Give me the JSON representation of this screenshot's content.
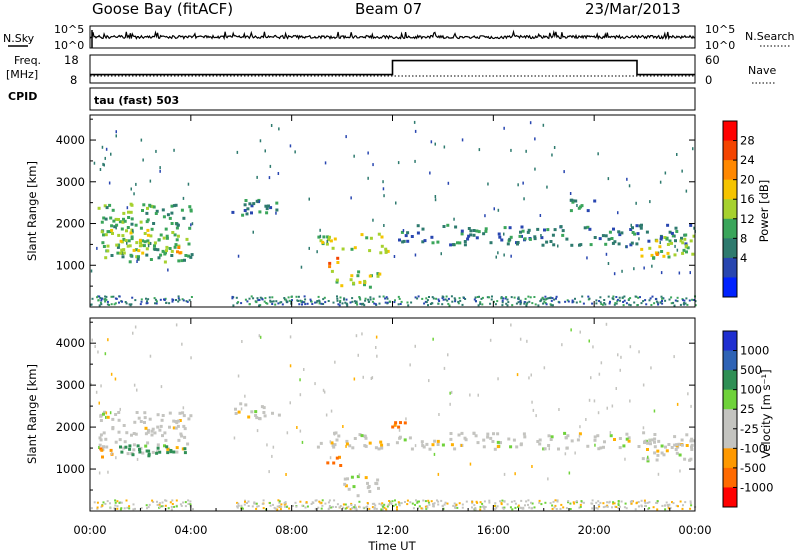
{
  "header": {
    "station": "Goose Bay (fitACF)",
    "beam": "Beam 07",
    "date": "23/Mar/2013"
  },
  "noise_panel": {
    "left_label": "N.Sky",
    "right_label": "N.Search",
    "left_ticks": [
      "10^5",
      "10^0"
    ],
    "right_ticks": [
      "10^5",
      "10^0"
    ]
  },
  "freq_panel": {
    "left_label_top": "Freq.",
    "left_label_unit": "[MHz]",
    "right_label": "Nave",
    "left_ticks": [
      "18",
      "8"
    ],
    "right_ticks": [
      "60",
      "0"
    ],
    "freq_steps": [
      {
        "from_hour": 0,
        "to_hour": 12.0,
        "value": 11
      },
      {
        "from_hour": 12.0,
        "to_hour": 21.7,
        "value": 16
      },
      {
        "from_hour": 21.7,
        "to_hour": 24,
        "value": 11
      }
    ]
  },
  "cpid_panel": {
    "label": "CPID",
    "mode": "tau (fast) 503"
  },
  "power_panel": {
    "ylabel": "Slant Range [km]",
    "colorbar_label": "Power [dB]",
    "colorbar_ticks": [
      "28",
      "24",
      "20",
      "16",
      "12",
      "8",
      "4"
    ],
    "colorbar_colors": [
      "#ff0000",
      "#f44400",
      "#ff8800",
      "#f5c400",
      "#a6d12e",
      "#3aa55a",
      "#2e7a6e",
      "#2846b0",
      "#0022ff"
    ]
  },
  "velocity_panel": {
    "ylabel": "Slant Range [km]",
    "colorbar_label": "Velocity [m s⁻¹]",
    "colorbar_ticks": [
      "1000",
      "500",
      "100",
      "25",
      "-25",
      "-100",
      "-500",
      "-1000"
    ],
    "colorbar_colors": [
      "#1f2fd0",
      "#2e63b5",
      "#2f8f55",
      "#6fd23a",
      "#c4c4c0",
      "#c4c4c0",
      "#ff9900",
      "#ff6a00",
      "#ff0000"
    ]
  },
  "chart_data": {
    "type": "heatmap",
    "xlabel": "Time UT",
    "xticks": [
      "00:00",
      "04:00",
      "08:00",
      "12:00",
      "16:00",
      "20:00",
      "00:00"
    ],
    "xlim_hours": [
      0,
      24
    ],
    "ylim": [
      0,
      4600
    ],
    "yticks": [
      1000,
      2000,
      3000,
      4000
    ],
    "data_gap_hours": [
      4.1,
      5.6
    ],
    "power_regions": [
      {
        "t0": 0.3,
        "t1": 4.0,
        "r0": 1100,
        "r1": 2500,
        "dB": 12
      },
      {
        "t0": 0.5,
        "t1": 3.5,
        "r0": 1300,
        "r1": 1900,
        "dB": 16
      },
      {
        "t0": 2.4,
        "t1": 3.6,
        "r0": 1300,
        "r1": 1500,
        "dB": 20
      },
      {
        "t0": 5.6,
        "t1": 7.5,
        "r0": 2200,
        "r1": 2600,
        "dB": 8
      },
      {
        "t0": 9.0,
        "t1": 11.8,
        "r0": 1300,
        "r1": 1800,
        "dB": 16
      },
      {
        "t0": 9.4,
        "t1": 9.8,
        "r0": 1000,
        "r1": 1400,
        "dB": 24
      },
      {
        "t0": 9.5,
        "t1": 11.5,
        "r0": 500,
        "r1": 900,
        "dB": 16
      },
      {
        "t0": 12.1,
        "t1": 23.9,
        "r0": 1500,
        "r1": 2000,
        "dB": 8
      },
      {
        "t0": 19.0,
        "t1": 20.0,
        "r0": 2300,
        "r1": 2600,
        "dB": 8
      },
      {
        "t0": 21.8,
        "t1": 23.9,
        "r0": 1200,
        "r1": 1800,
        "dB": 16
      },
      {
        "t0": 22.0,
        "t1": 22.5,
        "r0": 1200,
        "r1": 1400,
        "dB": 24
      }
    ],
    "velocity_regions": [
      {
        "t0": 0.3,
        "t1": 4.0,
        "r0": 1400,
        "r1": 2400,
        "v": 0
      },
      {
        "t0": 0.3,
        "t1": 1.0,
        "r0": 1300,
        "r1": 1600,
        "v": -500
      },
      {
        "t0": 1.0,
        "t1": 3.8,
        "r0": 1300,
        "r1": 1600,
        "v": 100
      },
      {
        "t0": 5.6,
        "t1": 7.5,
        "r0": 2200,
        "r1": 2600,
        "v": 0
      },
      {
        "t0": 9.0,
        "t1": 11.8,
        "r0": 1500,
        "r1": 1900,
        "v": 0
      },
      {
        "t0": 9.3,
        "t1": 9.9,
        "r0": 1000,
        "r1": 1400,
        "v": -500
      },
      {
        "t0": 10.0,
        "t1": 11.6,
        "r0": 400,
        "r1": 900,
        "v": 0
      },
      {
        "t0": 11.9,
        "t1": 12.6,
        "r0": 1900,
        "r1": 2150,
        "v": -500
      },
      {
        "t0": 12.1,
        "t1": 23.9,
        "r0": 1500,
        "r1": 1900,
        "v": 0
      },
      {
        "t0": 21.8,
        "t1": 23.9,
        "r0": 1200,
        "r1": 1700,
        "v": 0
      }
    ]
  }
}
